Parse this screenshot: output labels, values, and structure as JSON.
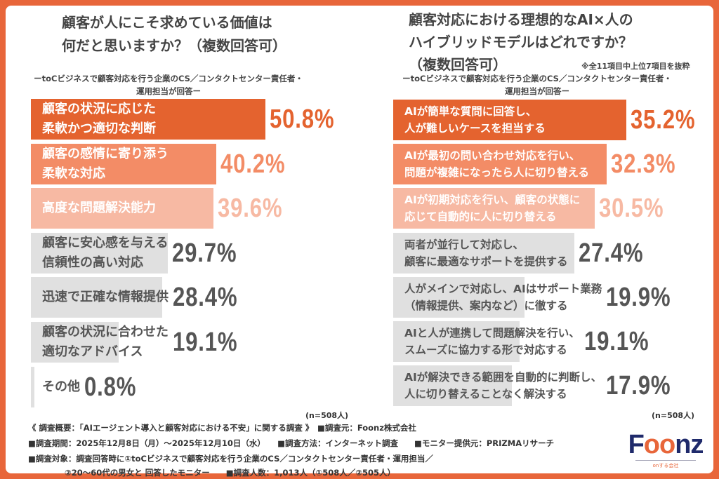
{
  "colors": {
    "frame": "#e8663a",
    "bar1": "#e4632f",
    "bar2": "#f38c66",
    "bar3": "#f7b9a3",
    "gray": "#e0e0e0",
    "gray_text": "#555555"
  },
  "chart_data": [
    {
      "type": "bar",
      "orientation": "horizontal",
      "title": "顧客が人にこそ求めている価値は\n何だと思いますか？（複数回答可）",
      "subtitle": "ーtoCビジネスで顧客対応を行う企業のCS／コンタクトセンター責任者・\n運用担当が回答ー",
      "categories": [
        "顧客の状況に応じた\n柔軟かつ適切な判断",
        "顧客の感情に寄り添う\n柔軟な対応",
        "高度な問題解決能力",
        "顧客に安心感を与える\n信頼性の高い対応",
        "迅速で正確な情報提供",
        "顧客の状況に合わせた\n適切なアドバイス",
        "その他"
      ],
      "values": [
        50.8,
        40.2,
        39.6,
        29.7,
        28.4,
        19.1,
        0.8
      ],
      "value_labels": [
        "50.8%",
        "40.2%",
        "39.6%",
        "29.7%",
        "28.4%",
        "19.1%",
        "0.8%"
      ],
      "unit": "%",
      "n_label": "(n=508人)"
    },
    {
      "type": "bar",
      "orientation": "horizontal",
      "title": "顧客対応における理想的なAI×人の\nハイブリッドモデルはどれですか？\n（複数回答可）",
      "note": "※全11項目中上位7項目を抜粋",
      "subtitle": "ーtoCビジネスで顧客対応を行う企業のCS／コンタクトセンター責任者・\n運用担当が回答ー",
      "categories": [
        "AIが簡単な質問に回答し、\n人が難しいケースを担当する",
        "AIが最初の問い合わせ対応を行い、\n問題が複雑になったら人に切り替える",
        "AIが初期対応を行い、顧客の状態に\n応じて自動的に人に切り替える",
        "両者が並行して対応し、\n顧客に最適なサポートを提供する",
        "人がメインで対応し、AIはサポート業務\n（情報提供、案内など）に徹する",
        "AIと人が連携して問題解決を行い、\nスムーズに協力する形で対応する",
        "AIが解決できる範囲を自動的に判断し、\n人に切り替えることなく解決する"
      ],
      "values": [
        35.2,
        32.3,
        30.5,
        27.4,
        19.9,
        19.1,
        17.9
      ],
      "value_labels": [
        "35.2%",
        "32.3%",
        "30.5%",
        "27.4%",
        "19.9%",
        "19.1%",
        "17.9%"
      ],
      "unit": "%",
      "n_label": "(n=508人)"
    }
  ],
  "footer": {
    "line1": "《 調査概要：「AIエージェント導入と顧客対応における不安」に関する調査 》　■調査元：Foonz株式会社",
    "line2": "■調査期間：2025年12月8日（月）〜2025年12月10日（水）　　■調査方法：インターネット調査　　■モニター提供元：PRIZMAリサーチ",
    "line3": "■調査対象：調査回答時に①toCビジネスで顧客対応を行う企業のCS／コンタクトセンター責任者・運用担当／",
    "line4": "②20〜60代の男女と 回答したモニター　　■調査人数：1,013人（①508人／②505人）"
  },
  "logo": {
    "text": "Foonz",
    "tagline": "onする会社"
  }
}
